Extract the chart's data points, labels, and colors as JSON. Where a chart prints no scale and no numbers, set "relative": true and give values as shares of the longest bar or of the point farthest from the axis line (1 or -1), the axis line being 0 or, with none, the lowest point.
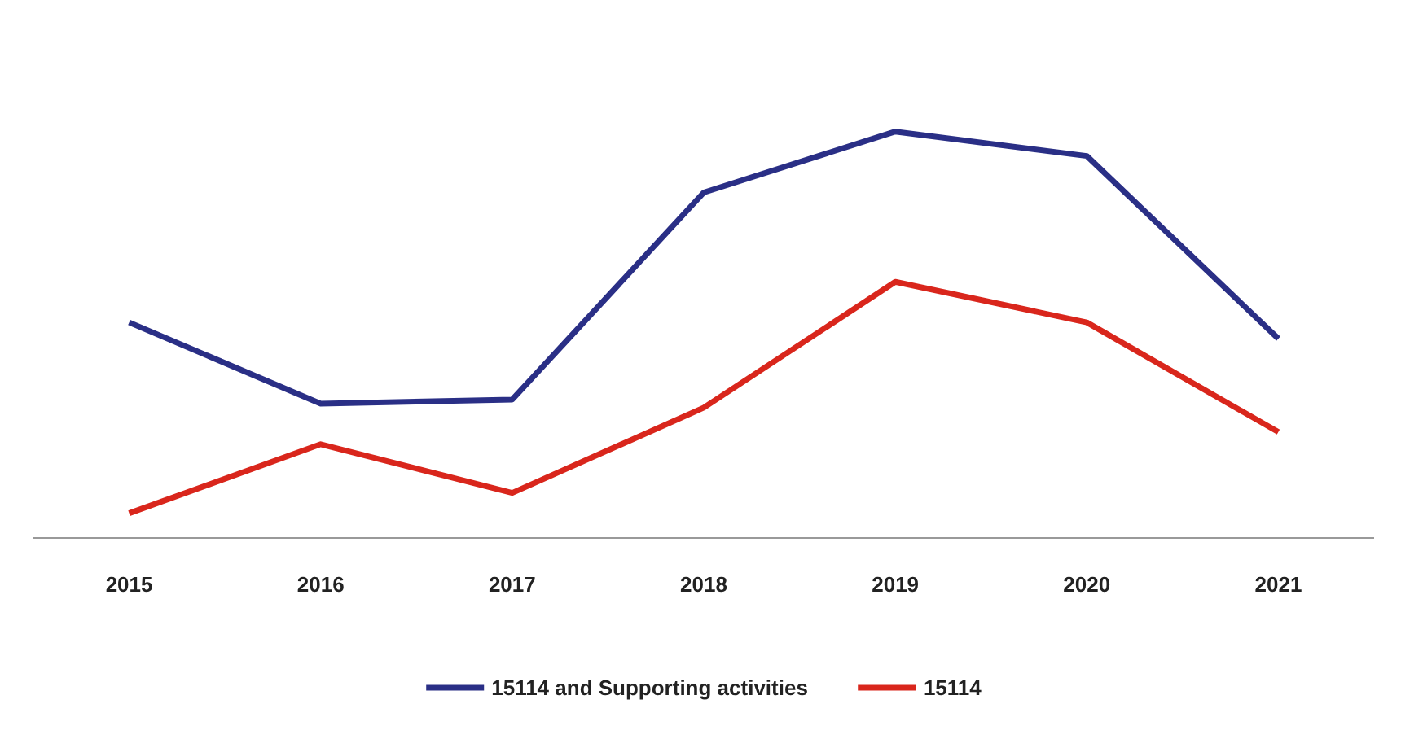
{
  "chart_data": {
    "type": "line",
    "relative": true,
    "categories": [
      "2015",
      "2016",
      "2017",
      "2018",
      "2019",
      "2020",
      "2021"
    ],
    "series": [
      {
        "name": "15114 and Supporting activities",
        "color": "#2a2f86",
        "values": [
          0.53,
          0.33,
          0.34,
          0.85,
          1,
          0.94,
          0.49
        ]
      },
      {
        "name": "15114",
        "color": "#d9261c",
        "values": [
          0.06,
          0.23,
          0.11,
          0.32,
          0.63,
          0.53,
          0.26
        ]
      }
    ],
    "legend": "bottom",
    "grid": false,
    "marker": "none",
    "line_style": "solid"
  }
}
